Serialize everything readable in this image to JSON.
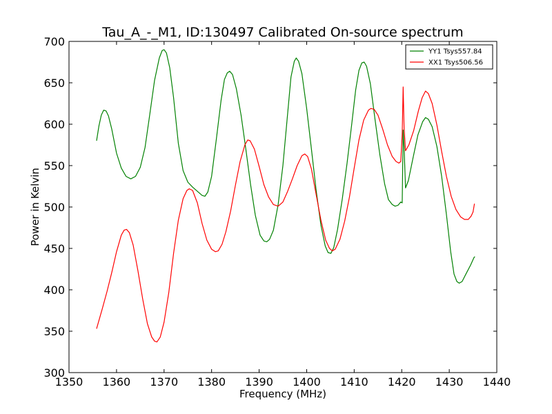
{
  "chart_data": {
    "type": "line",
    "title": "Tau_A_-_M1, ID:130497 Calibrated On-source spectrum",
    "xlabel": "Frequency (MHz)",
    "ylabel": "Power in Kelvin",
    "xlim": [
      1350,
      1440
    ],
    "ylim": [
      300,
      700
    ],
    "xticks": [
      1350,
      1360,
      1370,
      1380,
      1390,
      1400,
      1410,
      1420,
      1430,
      1440
    ],
    "yticks": [
      300,
      350,
      400,
      450,
      500,
      550,
      600,
      650,
      700
    ],
    "xtick_labels": [
      "1350",
      "1360",
      "1370",
      "1380",
      "1390",
      "1400",
      "1410",
      "1420",
      "1430",
      "1440"
    ],
    "ytick_labels": [
      "300",
      "350",
      "400",
      "450",
      "500",
      "550",
      "600",
      "650",
      "700"
    ],
    "legend_position": "top-right",
    "grid": false,
    "series": [
      {
        "name": "YY1 Tsys557.84",
        "color": "#008000",
        "points": [
          [
            1355.8,
            580
          ],
          [
            1356.3,
            598
          ],
          [
            1356.8,
            611
          ],
          [
            1357.3,
            617
          ],
          [
            1357.8,
            616
          ],
          [
            1358.3,
            610
          ],
          [
            1359,
            594
          ],
          [
            1360,
            565
          ],
          [
            1361,
            547
          ],
          [
            1362,
            537
          ],
          [
            1363,
            534
          ],
          [
            1364,
            537
          ],
          [
            1365,
            548
          ],
          [
            1366,
            572
          ],
          [
            1367,
            612
          ],
          [
            1368,
            653
          ],
          [
            1369,
            680
          ],
          [
            1369.6,
            689
          ],
          [
            1370,
            690
          ],
          [
            1370.5,
            686
          ],
          [
            1371.2,
            668
          ],
          [
            1372,
            632
          ],
          [
            1373,
            577
          ],
          [
            1374,
            544
          ],
          [
            1375,
            530
          ],
          [
            1376,
            524
          ],
          [
            1377,
            519
          ],
          [
            1378,
            514
          ],
          [
            1378.6,
            513
          ],
          [
            1379.2,
            518
          ],
          [
            1380,
            537
          ],
          [
            1381,
            582
          ],
          [
            1382,
            629
          ],
          [
            1382.7,
            654
          ],
          [
            1383.3,
            662
          ],
          [
            1383.8,
            664
          ],
          [
            1384.4,
            660
          ],
          [
            1385.2,
            643
          ],
          [
            1386.2,
            611
          ],
          [
            1387.2,
            570
          ],
          [
            1388.2,
            527
          ],
          [
            1389.2,
            490
          ],
          [
            1390.2,
            466
          ],
          [
            1391,
            459
          ],
          [
            1391.6,
            458
          ],
          [
            1392.2,
            461
          ],
          [
            1393,
            472
          ],
          [
            1394,
            503
          ],
          [
            1395,
            550
          ],
          [
            1396,
            613
          ],
          [
            1396.7,
            657
          ],
          [
            1397.4,
            676
          ],
          [
            1397.8,
            680
          ],
          [
            1398.3,
            676
          ],
          [
            1399,
            661
          ],
          [
            1400,
            619
          ],
          [
            1401,
            570
          ],
          [
            1402,
            520
          ],
          [
            1403,
            478
          ],
          [
            1403.9,
            453
          ],
          [
            1404.5,
            445
          ],
          [
            1405.1,
            444
          ],
          [
            1405.7,
            451
          ],
          [
            1406.5,
            473
          ],
          [
            1407.5,
            510
          ],
          [
            1408.5,
            553
          ],
          [
            1409.5,
            601
          ],
          [
            1410.3,
            641
          ],
          [
            1411,
            665
          ],
          [
            1411.6,
            674
          ],
          [
            1412.1,
            675
          ],
          [
            1412.6,
            670
          ],
          [
            1413.4,
            649
          ],
          [
            1414.4,
            605
          ],
          [
            1415.4,
            563
          ],
          [
            1416.4,
            528
          ],
          [
            1417.2,
            509
          ],
          [
            1418,
            503
          ],
          [
            1418.6,
            501
          ],
          [
            1419.2,
            502
          ],
          [
            1419.8,
            506
          ],
          [
            1420.1,
            505
          ],
          [
            1420.3,
            593
          ],
          [
            1420.5,
            572
          ],
          [
            1420.8,
            523
          ],
          [
            1421.4,
            532
          ],
          [
            1422.4,
            560
          ],
          [
            1423.4,
            587
          ],
          [
            1424.4,
            603
          ],
          [
            1425,
            608
          ],
          [
            1425.6,
            606
          ],
          [
            1426.4,
            597
          ],
          [
            1427.4,
            573
          ],
          [
            1428.4,
            537
          ],
          [
            1429.4,
            491
          ],
          [
            1430.3,
            446
          ],
          [
            1431,
            419
          ],
          [
            1431.6,
            410
          ],
          [
            1432.1,
            408
          ],
          [
            1432.7,
            410
          ],
          [
            1433.5,
            419
          ],
          [
            1434.5,
            430
          ],
          [
            1435.2,
            439
          ],
          [
            1435.4,
            440
          ]
        ]
      },
      {
        "name": "XX1 Tsys506.56",
        "color": "#ff0000",
        "points": [
          [
            1355.8,
            353
          ],
          [
            1357,
            377
          ],
          [
            1358,
            398
          ],
          [
            1359,
            421
          ],
          [
            1360,
            446
          ],
          [
            1361,
            466
          ],
          [
            1361.6,
            472
          ],
          [
            1362.1,
            473
          ],
          [
            1362.7,
            469
          ],
          [
            1363.5,
            454
          ],
          [
            1364.5,
            423
          ],
          [
            1365.5,
            389
          ],
          [
            1366.5,
            359
          ],
          [
            1367.4,
            343
          ],
          [
            1368,
            338
          ],
          [
            1368.5,
            337
          ],
          [
            1369.2,
            343
          ],
          [
            1370,
            361
          ],
          [
            1371,
            397
          ],
          [
            1372,
            444
          ],
          [
            1373,
            484
          ],
          [
            1374,
            510
          ],
          [
            1374.8,
            520
          ],
          [
            1375.3,
            522
          ],
          [
            1376,
            520
          ],
          [
            1377,
            505
          ],
          [
            1378,
            480
          ],
          [
            1379,
            460
          ],
          [
            1380,
            449
          ],
          [
            1380.8,
            446
          ],
          [
            1381.4,
            447
          ],
          [
            1382.2,
            455
          ],
          [
            1383,
            470
          ],
          [
            1384,
            495
          ],
          [
            1385,
            526
          ],
          [
            1386,
            555
          ],
          [
            1387,
            575
          ],
          [
            1387.6,
            581
          ],
          [
            1388.1,
            580
          ],
          [
            1389,
            570
          ],
          [
            1390,
            549
          ],
          [
            1391,
            527
          ],
          [
            1392,
            512
          ],
          [
            1393,
            503
          ],
          [
            1394,
            501
          ],
          [
            1395,
            506
          ],
          [
            1396,
            519
          ],
          [
            1397,
            534
          ],
          [
            1398,
            550
          ],
          [
            1399,
            562
          ],
          [
            1399.6,
            564
          ],
          [
            1400.2,
            561
          ],
          [
            1401,
            546
          ],
          [
            1402,
            515
          ],
          [
            1403,
            484
          ],
          [
            1404,
            460
          ],
          [
            1404.8,
            450
          ],
          [
            1405.4,
            447
          ],
          [
            1406,
            449
          ],
          [
            1407,
            461
          ],
          [
            1408,
            483
          ],
          [
            1409,
            512
          ],
          [
            1410,
            547
          ],
          [
            1411,
            581
          ],
          [
            1412,
            605
          ],
          [
            1413,
            617
          ],
          [
            1413.5,
            619
          ],
          [
            1414.2,
            618
          ],
          [
            1415,
            611
          ],
          [
            1416,
            594
          ],
          [
            1417,
            575
          ],
          [
            1418,
            561
          ],
          [
            1418.8,
            555
          ],
          [
            1419.4,
            553
          ],
          [
            1419.8,
            555
          ],
          [
            1420.1,
            588
          ],
          [
            1420.3,
            645
          ],
          [
            1420.5,
            595
          ],
          [
            1420.8,
            568
          ],
          [
            1421.5,
            575
          ],
          [
            1422.5,
            592
          ],
          [
            1423.5,
            616
          ],
          [
            1424.3,
            632
          ],
          [
            1425,
            640
          ],
          [
            1425.6,
            637
          ],
          [
            1426.4,
            625
          ],
          [
            1427.4,
            599
          ],
          [
            1428.4,
            567
          ],
          [
            1429.4,
            537
          ],
          [
            1430.4,
            513
          ],
          [
            1431.4,
            497
          ],
          [
            1432.4,
            488
          ],
          [
            1433.2,
            485
          ],
          [
            1434,
            485
          ],
          [
            1434.6,
            489
          ],
          [
            1435,
            494
          ],
          [
            1435.3,
            504
          ]
        ]
      }
    ]
  }
}
